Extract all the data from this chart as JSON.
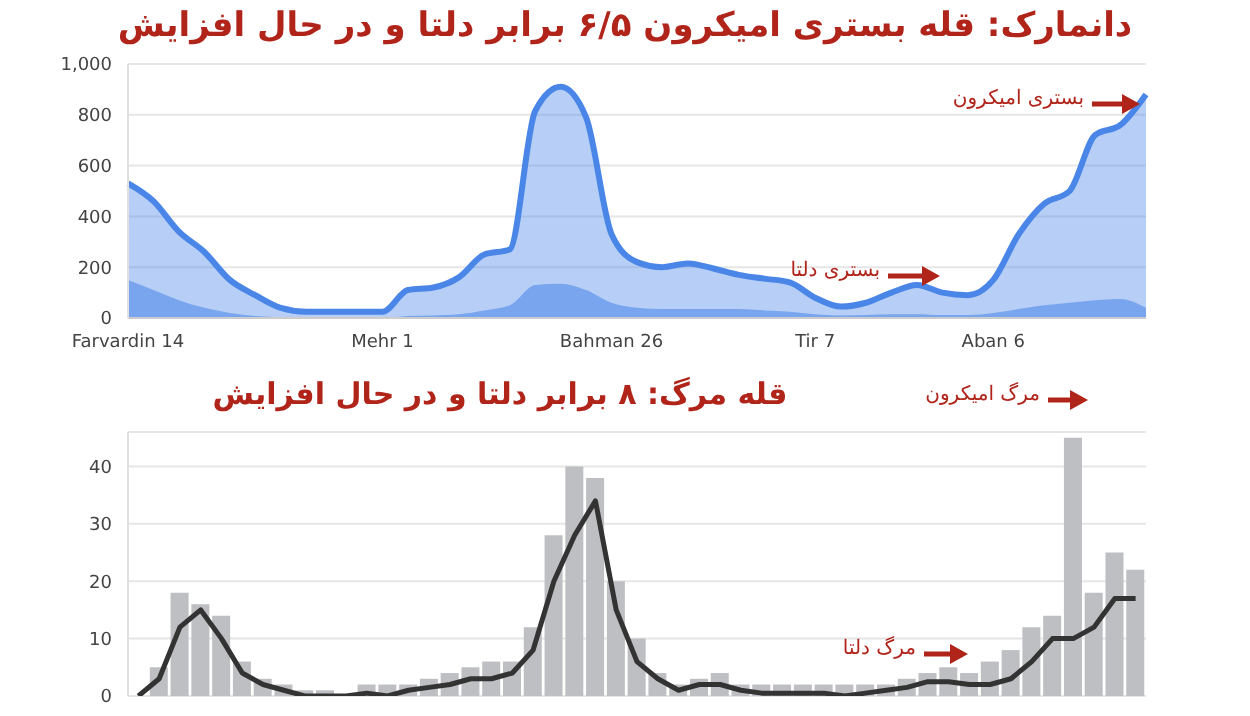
{
  "chart_data": [
    {
      "type": "area",
      "title": "دانمارک: قله بستری امیکرون ۶/۵ برابر دلتا و در حال افزایش",
      "categories": [
        "Farvardin 14",
        null,
        null,
        null,
        null,
        null,
        null,
        null,
        null,
        null,
        "Mehr 1",
        null,
        null,
        null,
        null,
        null,
        null,
        null,
        null,
        "Bahman 26",
        null,
        null,
        null,
        null,
        null,
        null,
        null,
        "Tir 7",
        null,
        null,
        null,
        null,
        null,
        null,
        "Aban 6",
        null,
        null,
        null,
        null,
        null,
        null
      ],
      "series": [
        {
          "color": "#4a86e8",
          "values": [
            530,
            460,
            340,
            260,
            150,
            90,
            40,
            25,
            25,
            25,
            25,
            110,
            120,
            160,
            250,
            270,
            815,
            910,
            790,
            330,
            220,
            200,
            215,
            195,
            170,
            155,
            140,
            80,
            45,
            60,
            100,
            130,
            100,
            90,
            150,
            330,
            450,
            500,
            720,
            760,
            880
          ]
        },
        {
          "color": "#6d9eeb",
          "values": [
            150,
            110,
            70,
            40,
            20,
            8,
            3,
            0,
            0,
            0,
            0,
            8,
            10,
            15,
            30,
            50,
            130,
            135,
            110,
            60,
            40,
            35,
            35,
            35,
            35,
            30,
            25,
            15,
            10,
            12,
            15,
            15,
            12,
            12,
            20,
            35,
            50,
            60,
            70,
            75,
            40
          ]
        }
      ],
      "ylim": [
        0,
        1000
      ],
      "yticks": [
        0,
        200,
        400,
        600,
        800,
        {
          "value": 1000,
          "label": "1,000"
        }
      ],
      "grid": "y",
      "annotations": [
        "بستری امیکرون",
        "بستری دلتا"
      ]
    },
    {
      "type": "bar",
      "title": "قله مرگ: ۸ برابر دلتا و در حال افزایش",
      "categories": [
        null,
        null,
        null,
        null,
        null,
        null,
        null,
        null,
        null,
        null,
        null,
        null,
        null,
        null,
        null,
        null,
        null,
        null,
        null,
        null,
        null,
        null,
        null,
        null,
        null,
        null,
        null,
        null,
        null,
        null,
        null,
        null,
        null,
        null,
        null,
        null,
        null,
        null,
        null,
        null,
        null,
        null,
        null,
        null,
        null,
        null,
        null,
        null,
        null
      ],
      "series": [
        {
          "color": "#bdbfc3",
          "values": [
            0,
            5,
            18,
            16,
            14,
            6,
            3,
            2,
            1,
            1,
            0,
            2,
            2,
            2,
            3,
            4,
            5,
            6,
            6,
            12,
            28,
            40,
            38,
            20,
            10,
            4,
            2,
            3,
            4,
            2,
            2,
            2,
            2,
            2,
            2,
            2,
            2,
            3,
            4,
            5,
            4,
            6,
            8,
            12,
            14,
            45,
            18,
            25,
            22
          ]
        },
        {
          "type": "line",
          "color": "#333333",
          "values": [
            0,
            3,
            12,
            15,
            10,
            4,
            2,
            1,
            0,
            0,
            0,
            0.5,
            0,
            1,
            1.5,
            2,
            3,
            3,
            4,
            8,
            20,
            28,
            34,
            15,
            6,
            3,
            1,
            2,
            2,
            1,
            0.5,
            0.5,
            0.5,
            0.5,
            0,
            0.5,
            1,
            1.5,
            2.5,
            2.5,
            2,
            2,
            3,
            6,
            10,
            10,
            12,
            17,
            17
          ]
        }
      ],
      "ylim": [
        0,
        46
      ],
      "yticks": [
        0,
        10,
        20,
        30,
        40
      ],
      "grid": "y",
      "tick_labels": "y",
      "annotations": [
        "مرگ امیکرون",
        "مرگ دلتا"
      ]
    }
  ]
}
